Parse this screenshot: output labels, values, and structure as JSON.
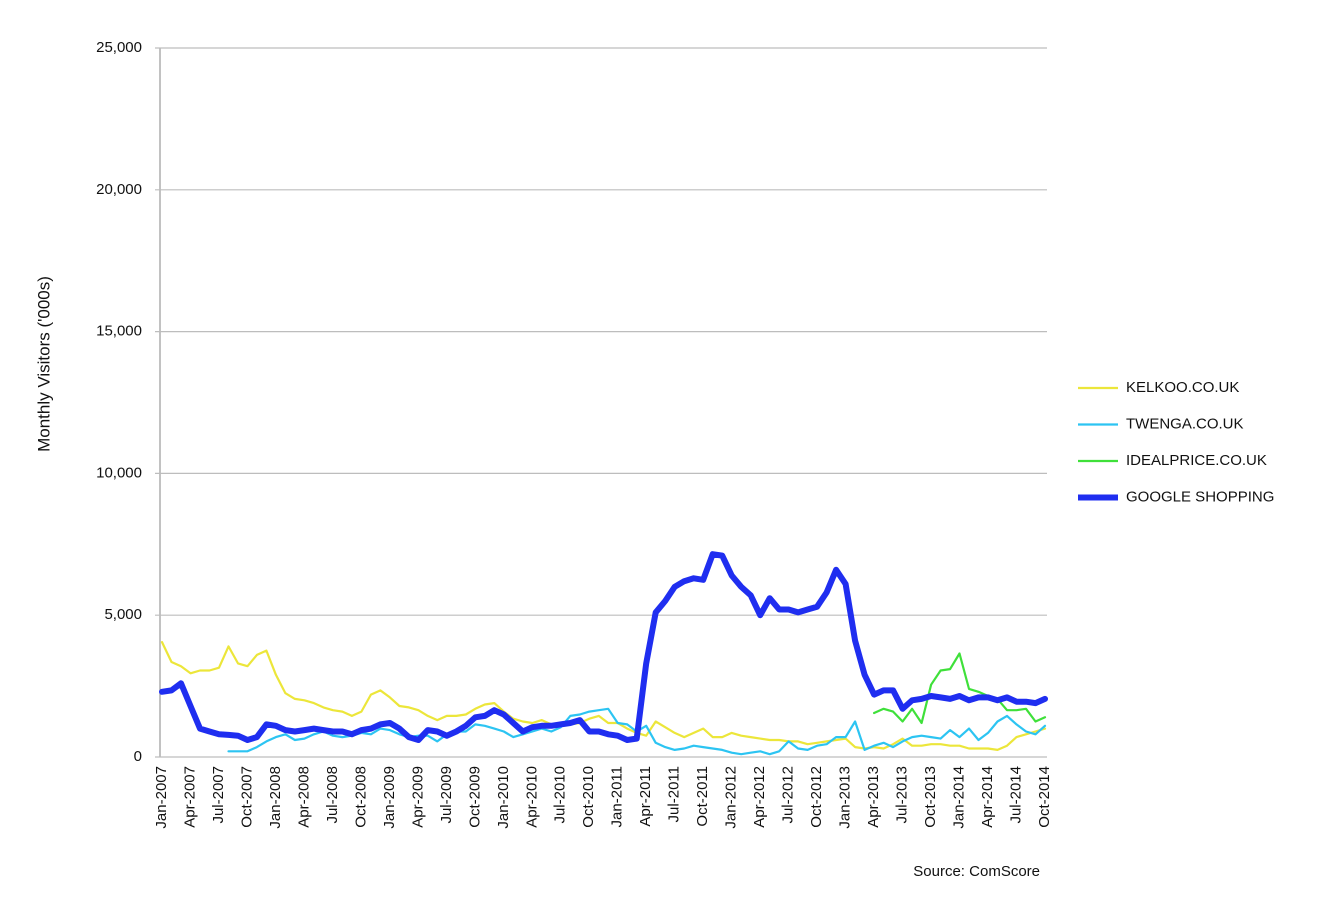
{
  "chart_data": {
    "type": "line",
    "y_label": "Monthly Visitors ('000s)",
    "note": "Source: ComScore",
    "categories": [
      "Jan-2007",
      null,
      null,
      "Apr-2007",
      null,
      null,
      "Jul-2007",
      null,
      null,
      "Oct-2007",
      null,
      null,
      "Jan-2008",
      null,
      null,
      "Apr-2008",
      null,
      null,
      "Jul-2008",
      null,
      null,
      "Oct-2008",
      null,
      null,
      "Jan-2009",
      null,
      null,
      "Apr-2009",
      null,
      null,
      "Jul-2009",
      null,
      null,
      "Oct-2009",
      null,
      null,
      "Jan-2010",
      null,
      null,
      "Apr-2010",
      null,
      null,
      "Jul-2010",
      null,
      null,
      "Oct-2010",
      null,
      null,
      "Jan-2011",
      null,
      null,
      "Apr-2011",
      null,
      null,
      "Jul-2011",
      null,
      null,
      "Oct-2011",
      null,
      null,
      "Jan-2012",
      null,
      null,
      "Apr-2012",
      null,
      null,
      "Jul-2012",
      null,
      null,
      "Oct-2012",
      null,
      null,
      "Jan-2013",
      null,
      null,
      "Apr-2013",
      null,
      null,
      "Jul-2013",
      null,
      null,
      "Oct-2013",
      null,
      null,
      "Jan-2014",
      null,
      null,
      "Apr-2014",
      null,
      null,
      "Jul-2014",
      null,
      null,
      "Oct-2014"
    ],
    "series": [
      {
        "name": "KELKOO.CO.UK",
        "color": "#ece63a",
        "width": 2.2,
        "values": [
          4050,
          3350,
          3200,
          2950,
          3050,
          3050,
          3150,
          3900,
          3300,
          3200,
          3600,
          3750,
          2900,
          2250,
          2050,
          2000,
          1900,
          1750,
          1650,
          1600,
          1450,
          1600,
          2200,
          2350,
          2100,
          1800,
          1750,
          1650,
          1450,
          1300,
          1450,
          1450,
          1500,
          1700,
          1850,
          1900,
          1600,
          1350,
          1250,
          1200,
          1300,
          1150,
          1150,
          1150,
          1200,
          1350,
          1450,
          1200,
          1200,
          1000,
          850,
          750,
          1250,
          1050,
          850,
          700,
          850,
          1000,
          700,
          700,
          850,
          750,
          700,
          650,
          600,
          600,
          550,
          550,
          450,
          500,
          550,
          600,
          650,
          350,
          300,
          350,
          300,
          450,
          650,
          400,
          400,
          450,
          450,
          400,
          400,
          300,
          300,
          300,
          250,
          400,
          700,
          800,
          900,
          1000
        ]
      },
      {
        "name": "TWENGA.CO.UK",
        "color": "#2cc4f2",
        "width": 2.2,
        "values": [
          null,
          null,
          null,
          null,
          null,
          null,
          null,
          200,
          200,
          200,
          350,
          550,
          700,
          800,
          600,
          650,
          800,
          900,
          750,
          700,
          750,
          850,
          800,
          1000,
          950,
          800,
          700,
          750,
          750,
          550,
          800,
          900,
          900,
          1150,
          1100,
          1000,
          900,
          700,
          800,
          900,
          1000,
          900,
          1050,
          1450,
          1500,
          1600,
          1650,
          1700,
          1200,
          1150,
          900,
          1100,
          500,
          350,
          250,
          300,
          400,
          350,
          300,
          250,
          150,
          100,
          150,
          200,
          100,
          200,
          550,
          300,
          250,
          400,
          450,
          700,
          700,
          1250,
          250,
          400,
          500,
          350,
          550,
          700,
          750,
          700,
          650,
          950,
          700,
          1000,
          600,
          850,
          1250,
          1450,
          1150,
          900,
          800,
          1100
        ]
      },
      {
        "name": "IDEALPRICE.CO.UK",
        "color": "#3fe03a",
        "width": 2.2,
        "values": [
          null,
          null,
          null,
          null,
          null,
          null,
          null,
          null,
          null,
          null,
          null,
          null,
          null,
          null,
          null,
          null,
          null,
          null,
          null,
          null,
          null,
          null,
          null,
          null,
          null,
          null,
          null,
          null,
          null,
          null,
          null,
          null,
          null,
          null,
          null,
          null,
          null,
          null,
          null,
          null,
          null,
          null,
          null,
          null,
          null,
          null,
          null,
          null,
          null,
          null,
          null,
          null,
          null,
          null,
          null,
          null,
          null,
          null,
          null,
          null,
          null,
          null,
          null,
          null,
          null,
          null,
          null,
          null,
          null,
          null,
          null,
          null,
          null,
          null,
          null,
          1550,
          1700,
          1600,
          1250,
          1700,
          1200,
          2550,
          3050,
          3100,
          3650,
          2400,
          2300,
          2150,
          2050,
          1650,
          1650,
          1700,
          1250,
          1400
        ]
      },
      {
        "name": "GOOGLE SHOPPING",
        "color": "#1f2ef0",
        "width": 6,
        "values": [
          2300,
          2350,
          2600,
          1800,
          1000,
          900,
          800,
          780,
          750,
          600,
          700,
          1150,
          1100,
          950,
          900,
          950,
          1000,
          950,
          900,
          900,
          800,
          950,
          1000,
          1150,
          1200,
          1000,
          700,
          600,
          950,
          900,
          750,
          900,
          1100,
          1400,
          1450,
          1650,
          1500,
          1200,
          900,
          1050,
          1100,
          1100,
          1150,
          1200,
          1300,
          900,
          900,
          800,
          750,
          600,
          650,
          3300,
          5100,
          5500,
          6000,
          6200,
          6300,
          6250,
          7150,
          7100,
          6400,
          6000,
          5700,
          5000,
          5600,
          5200,
          5200,
          5100,
          5200,
          5300,
          5800,
          6600,
          6100,
          4100,
          2900,
          2200,
          2350,
          2350,
          1700,
          2000,
          2050,
          2150,
          2100,
          2050,
          2150,
          2000,
          2100,
          2100,
          2000,
          2100,
          1950,
          1950,
          1900,
          2050
        ]
      }
    ],
    "ylim": [
      0,
      25000
    ],
    "yticks": [
      0,
      {
        "value": 5000,
        "label": "5,000"
      },
      {
        "value": 10000,
        "label": "10,000"
      },
      {
        "value": 15000,
        "label": "15,000"
      },
      {
        "value": 20000,
        "label": "20,000"
      },
      {
        "value": 25000,
        "label": "25,000"
      }
    ],
    "grid": true,
    "legend": "right"
  }
}
